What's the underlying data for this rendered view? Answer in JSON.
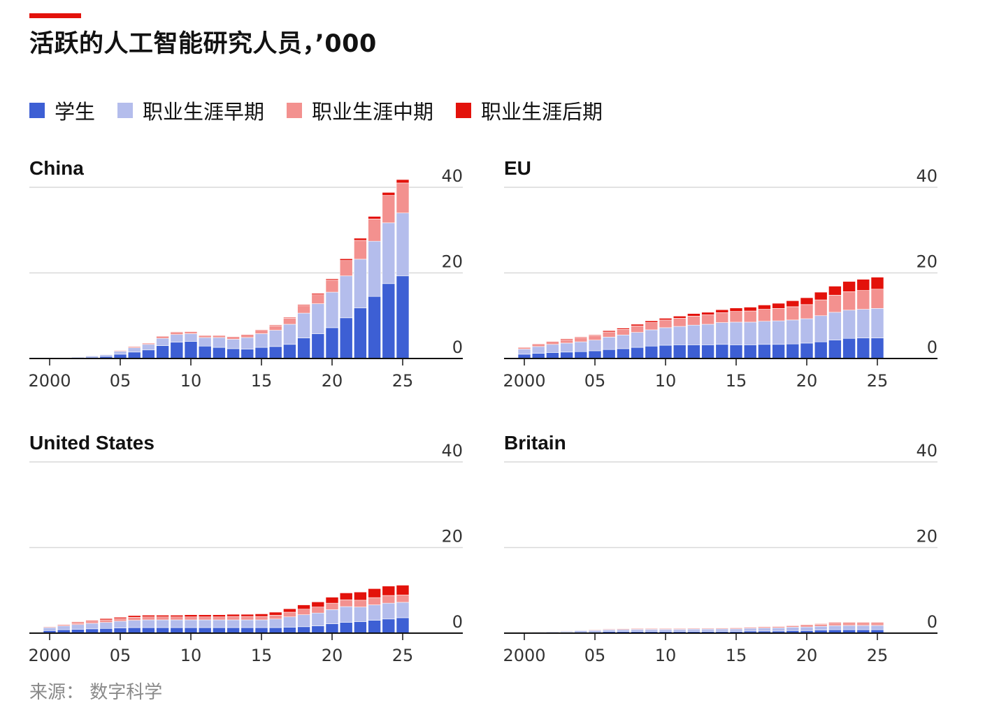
{
  "title": "活跃的人工智能研究人员，’000",
  "source": "来源：  数字科学",
  "legend": [
    {
      "label": "学生",
      "color": "#3d5fd4"
    },
    {
      "label": "职业生涯早期",
      "color": "#b4bdec"
    },
    {
      "label": "职业生涯中期",
      "color": "#f3918f"
    },
    {
      "label": "职业生涯后期",
      "color": "#e3120b"
    }
  ],
  "chart_data": [
    {
      "type": "bar",
      "stacked": true,
      "title": "China",
      "x": [
        2000,
        2001,
        2002,
        2003,
        2004,
        2005,
        2006,
        2007,
        2008,
        2009,
        2010,
        2011,
        2012,
        2013,
        2014,
        2015,
        2016,
        2017,
        2018,
        2019,
        2020,
        2021,
        2022,
        2023,
        2024,
        2025
      ],
      "ylim": [
        0,
        40
      ],
      "yticks": [
        "40",
        "20",
        "0"
      ],
      "xticks": [
        "2000",
        "05",
        "10",
        "15",
        "20",
        "25"
      ],
      "series": [
        {
          "name": "学生",
          "values": [
            0.1,
            0.1,
            0.2,
            0.3,
            0.5,
            1.0,
            1.5,
            2.0,
            3.0,
            3.8,
            4.0,
            2.9,
            2.6,
            2.3,
            2.2,
            2.6,
            2.8,
            3.3,
            4.8,
            5.8,
            7.2,
            9.5,
            11.8,
            14.5,
            17.5,
            19.3
          ]
        },
        {
          "name": "职业生涯早期",
          "values": [
            0.05,
            0.1,
            0.2,
            0.3,
            0.4,
            0.7,
            1.0,
            1.3,
            1.7,
            1.8,
            1.8,
            2.0,
            2.3,
            2.2,
            2.7,
            3.2,
            3.8,
            4.7,
            5.8,
            7.0,
            8.3,
            9.8,
            11.4,
            12.9,
            14.2,
            14.7
          ]
        },
        {
          "name": "职业生涯中期",
          "values": [
            0.02,
            0.05,
            0.1,
            0.1,
            0.1,
            0.2,
            0.3,
            0.3,
            0.5,
            0.6,
            0.5,
            0.5,
            0.5,
            0.6,
            0.7,
            0.8,
            1.0,
            1.4,
            1.8,
            2.1,
            2.8,
            3.6,
            4.4,
            5.2,
            6.4,
            7.0
          ]
        },
        {
          "name": "职业生涯后期",
          "values": [
            0.0,
            0.0,
            0.0,
            0.0,
            0.0,
            0.05,
            0.05,
            0.05,
            0.1,
            0.1,
            0.1,
            0.1,
            0.1,
            0.1,
            0.1,
            0.15,
            0.2,
            0.2,
            0.2,
            0.3,
            0.3,
            0.4,
            0.5,
            0.6,
            0.7,
            0.8
          ]
        }
      ]
    },
    {
      "type": "bar",
      "stacked": true,
      "title": "EU",
      "x": [
        2000,
        2001,
        2002,
        2003,
        2004,
        2005,
        2006,
        2007,
        2008,
        2009,
        2010,
        2011,
        2012,
        2013,
        2014,
        2015,
        2016,
        2017,
        2018,
        2019,
        2020,
        2021,
        2022,
        2023,
        2024,
        2025
      ],
      "ylim": [
        0,
        40
      ],
      "yticks": [
        "40",
        "20",
        "0"
      ],
      "xticks": [
        "2000",
        "05",
        "10",
        "15",
        "20",
        "25"
      ],
      "series": [
        {
          "name": "学生",
          "values": [
            1.0,
            1.2,
            1.4,
            1.5,
            1.6,
            1.8,
            2.1,
            2.3,
            2.6,
            2.9,
            3.1,
            3.2,
            3.2,
            3.2,
            3.3,
            3.2,
            3.2,
            3.3,
            3.3,
            3.4,
            3.6,
            3.9,
            4.3,
            4.7,
            4.8,
            4.8
          ]
        },
        {
          "name": "职业生涯早期",
          "values": [
            1.2,
            1.6,
            1.9,
            2.1,
            2.3,
            2.5,
            2.9,
            3.2,
            3.5,
            3.8,
            4.1,
            4.3,
            4.6,
            4.8,
            5.1,
            5.3,
            5.3,
            5.4,
            5.5,
            5.6,
            5.7,
            6.1,
            6.5,
            6.6,
            6.7,
            6.9
          ]
        },
        {
          "name": "职业生涯中期",
          "values": [
            0.4,
            0.6,
            0.7,
            0.8,
            0.9,
            1.0,
            1.2,
            1.3,
            1.5,
            1.7,
            1.8,
            1.9,
            2.1,
            2.2,
            2.3,
            2.5,
            2.6,
            2.8,
            2.9,
            3.1,
            3.3,
            3.7,
            4.0,
            4.3,
            4.4,
            4.5
          ]
        },
        {
          "name": "职业生涯后期",
          "values": [
            0.1,
            0.1,
            0.1,
            0.2,
            0.2,
            0.2,
            0.3,
            0.3,
            0.4,
            0.4,
            0.4,
            0.5,
            0.6,
            0.6,
            0.7,
            0.8,
            0.9,
            1.0,
            1.2,
            1.4,
            1.6,
            1.8,
            2.1,
            2.4,
            2.6,
            2.8
          ]
        }
      ]
    },
    {
      "type": "bar",
      "stacked": true,
      "title": "United States",
      "x": [
        2000,
        2001,
        2002,
        2003,
        2004,
        2005,
        2006,
        2007,
        2008,
        2009,
        2010,
        2011,
        2012,
        2013,
        2014,
        2015,
        2016,
        2017,
        2018,
        2019,
        2020,
        2021,
        2022,
        2023,
        2024,
        2025
      ],
      "ylim": [
        0,
        40
      ],
      "yticks": [
        "40",
        "20",
        "0"
      ],
      "xticks": [
        "2000",
        "05",
        "10",
        "15",
        "20",
        "25"
      ],
      "series": [
        {
          "name": "学生",
          "values": [
            0.6,
            0.8,
            0.9,
            1.0,
            1.1,
            1.2,
            1.3,
            1.3,
            1.3,
            1.3,
            1.3,
            1.3,
            1.3,
            1.3,
            1.3,
            1.3,
            1.3,
            1.4,
            1.5,
            1.7,
            2.2,
            2.5,
            2.7,
            3.0,
            3.3,
            3.6
          ]
        },
        {
          "name": "职业生涯早期",
          "values": [
            0.7,
            0.9,
            1.1,
            1.3,
            1.4,
            1.6,
            1.7,
            1.8,
            1.8,
            1.8,
            1.8,
            1.8,
            1.8,
            1.8,
            1.8,
            1.8,
            2.0,
            2.4,
            2.8,
            3.0,
            3.3,
            3.7,
            3.4,
            3.6,
            3.7,
            3.6
          ]
        },
        {
          "name": "职业生涯中期",
          "values": [
            0.2,
            0.3,
            0.4,
            0.5,
            0.6,
            0.6,
            0.7,
            0.7,
            0.7,
            0.7,
            0.7,
            0.7,
            0.7,
            0.8,
            0.8,
            0.8,
            0.9,
            1.1,
            1.3,
            1.4,
            1.5,
            1.6,
            1.6,
            1.7,
            1.8,
            1.7
          ]
        },
        {
          "name": "职业生涯后期",
          "values": [
            0.1,
            0.1,
            0.2,
            0.2,
            0.3,
            0.3,
            0.4,
            0.4,
            0.4,
            0.4,
            0.5,
            0.5,
            0.5,
            0.5,
            0.5,
            0.6,
            0.7,
            0.8,
            1.0,
            1.2,
            1.4,
            1.6,
            1.9,
            2.1,
            2.2,
            2.3
          ]
        }
      ]
    },
    {
      "type": "bar",
      "stacked": true,
      "title": "Britain",
      "x": [
        2000,
        2001,
        2002,
        2003,
        2004,
        2005,
        2006,
        2007,
        2008,
        2009,
        2010,
        2011,
        2012,
        2013,
        2014,
        2015,
        2016,
        2017,
        2018,
        2019,
        2020,
        2021,
        2022,
        2023,
        2024,
        2025
      ],
      "ylim": [
        0,
        40
      ],
      "yticks": [
        "40",
        "20",
        "0"
      ],
      "xticks": [
        "2000",
        "05",
        "10",
        "15",
        "20",
        "25"
      ],
      "series": [
        {
          "name": "学生",
          "values": [
            0.1,
            0.1,
            0.2,
            0.2,
            0.3,
            0.3,
            0.4,
            0.4,
            0.4,
            0.4,
            0.4,
            0.4,
            0.4,
            0.4,
            0.4,
            0.4,
            0.5,
            0.5,
            0.5,
            0.6,
            0.6,
            0.7,
            0.8,
            0.8,
            0.8,
            0.8
          ]
        },
        {
          "name": "职业生涯早期",
          "values": [
            0.1,
            0.15,
            0.2,
            0.25,
            0.3,
            0.35,
            0.4,
            0.45,
            0.5,
            0.5,
            0.5,
            0.5,
            0.55,
            0.55,
            0.6,
            0.6,
            0.65,
            0.7,
            0.75,
            0.8,
            0.85,
            0.9,
            0.95,
            1.0,
            1.0,
            1.0
          ]
        },
        {
          "name": "职业生涯中期",
          "values": [
            0.05,
            0.05,
            0.1,
            0.1,
            0.1,
            0.15,
            0.15,
            0.2,
            0.2,
            0.2,
            0.2,
            0.2,
            0.2,
            0.2,
            0.2,
            0.25,
            0.25,
            0.3,
            0.3,
            0.35,
            0.4,
            0.45,
            0.5,
            0.5,
            0.5,
            0.5
          ]
        },
        {
          "name": "职业生涯后期",
          "values": [
            0.02,
            0.02,
            0.03,
            0.03,
            0.04,
            0.05,
            0.05,
            0.05,
            0.05,
            0.05,
            0.05,
            0.05,
            0.05,
            0.05,
            0.05,
            0.05,
            0.05,
            0.1,
            0.1,
            0.1,
            0.15,
            0.15,
            0.2,
            0.2,
            0.2,
            0.2
          ]
        }
      ]
    }
  ]
}
